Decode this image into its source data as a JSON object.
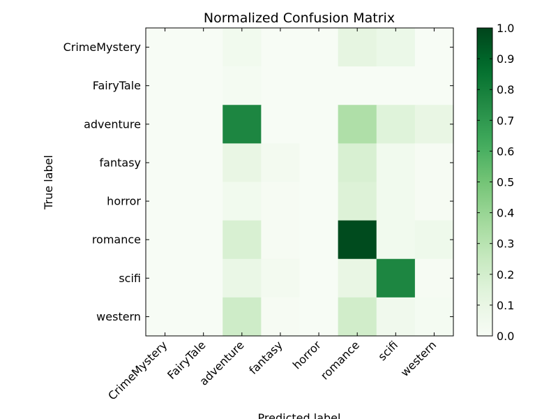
{
  "chart_data": {
    "type": "heatmap",
    "title": "Normalized Confusion Matrix",
    "xlabel": "Predicted label",
    "ylabel": "True label",
    "row_labels": [
      "CrimeMystery",
      "FairyTale",
      "adventure",
      "fantasy",
      "horror",
      "romance",
      "scifi",
      "western"
    ],
    "col_labels": [
      "CrimeMystery",
      "FairyTale",
      "adventure",
      "fantasy",
      "horror",
      "romance",
      "scifi",
      "western"
    ],
    "values": [
      [
        0.0,
        0.0,
        0.04,
        0.0,
        0.0,
        0.12,
        0.08,
        0.0
      ],
      [
        0.0,
        0.0,
        0.02,
        0.0,
        0.0,
        0.0,
        0.0,
        0.0
      ],
      [
        0.0,
        0.0,
        0.77,
        0.0,
        0.0,
        0.33,
        0.15,
        0.1
      ],
      [
        0.0,
        0.0,
        0.1,
        0.03,
        0.0,
        0.18,
        0.04,
        0.01
      ],
      [
        0.0,
        0.0,
        0.04,
        0.01,
        0.0,
        0.16,
        0.04,
        0.01
      ],
      [
        0.0,
        0.0,
        0.18,
        0.01,
        0.0,
        0.98,
        0.04,
        0.06
      ],
      [
        0.0,
        0.0,
        0.09,
        0.03,
        0.0,
        0.1,
        0.77,
        0.01
      ],
      [
        0.0,
        0.0,
        0.22,
        0.01,
        0.0,
        0.21,
        0.05,
        0.02
      ]
    ],
    "colorbar": {
      "colormap": "Greens",
      "range": [
        0.0,
        1.0
      ],
      "ticks": [
        "0.0",
        "0.1",
        "0.2",
        "0.3",
        "0.4",
        "0.5",
        "0.6",
        "0.7",
        "0.8",
        "0.9",
        "1.0"
      ]
    },
    "grid": false
  }
}
